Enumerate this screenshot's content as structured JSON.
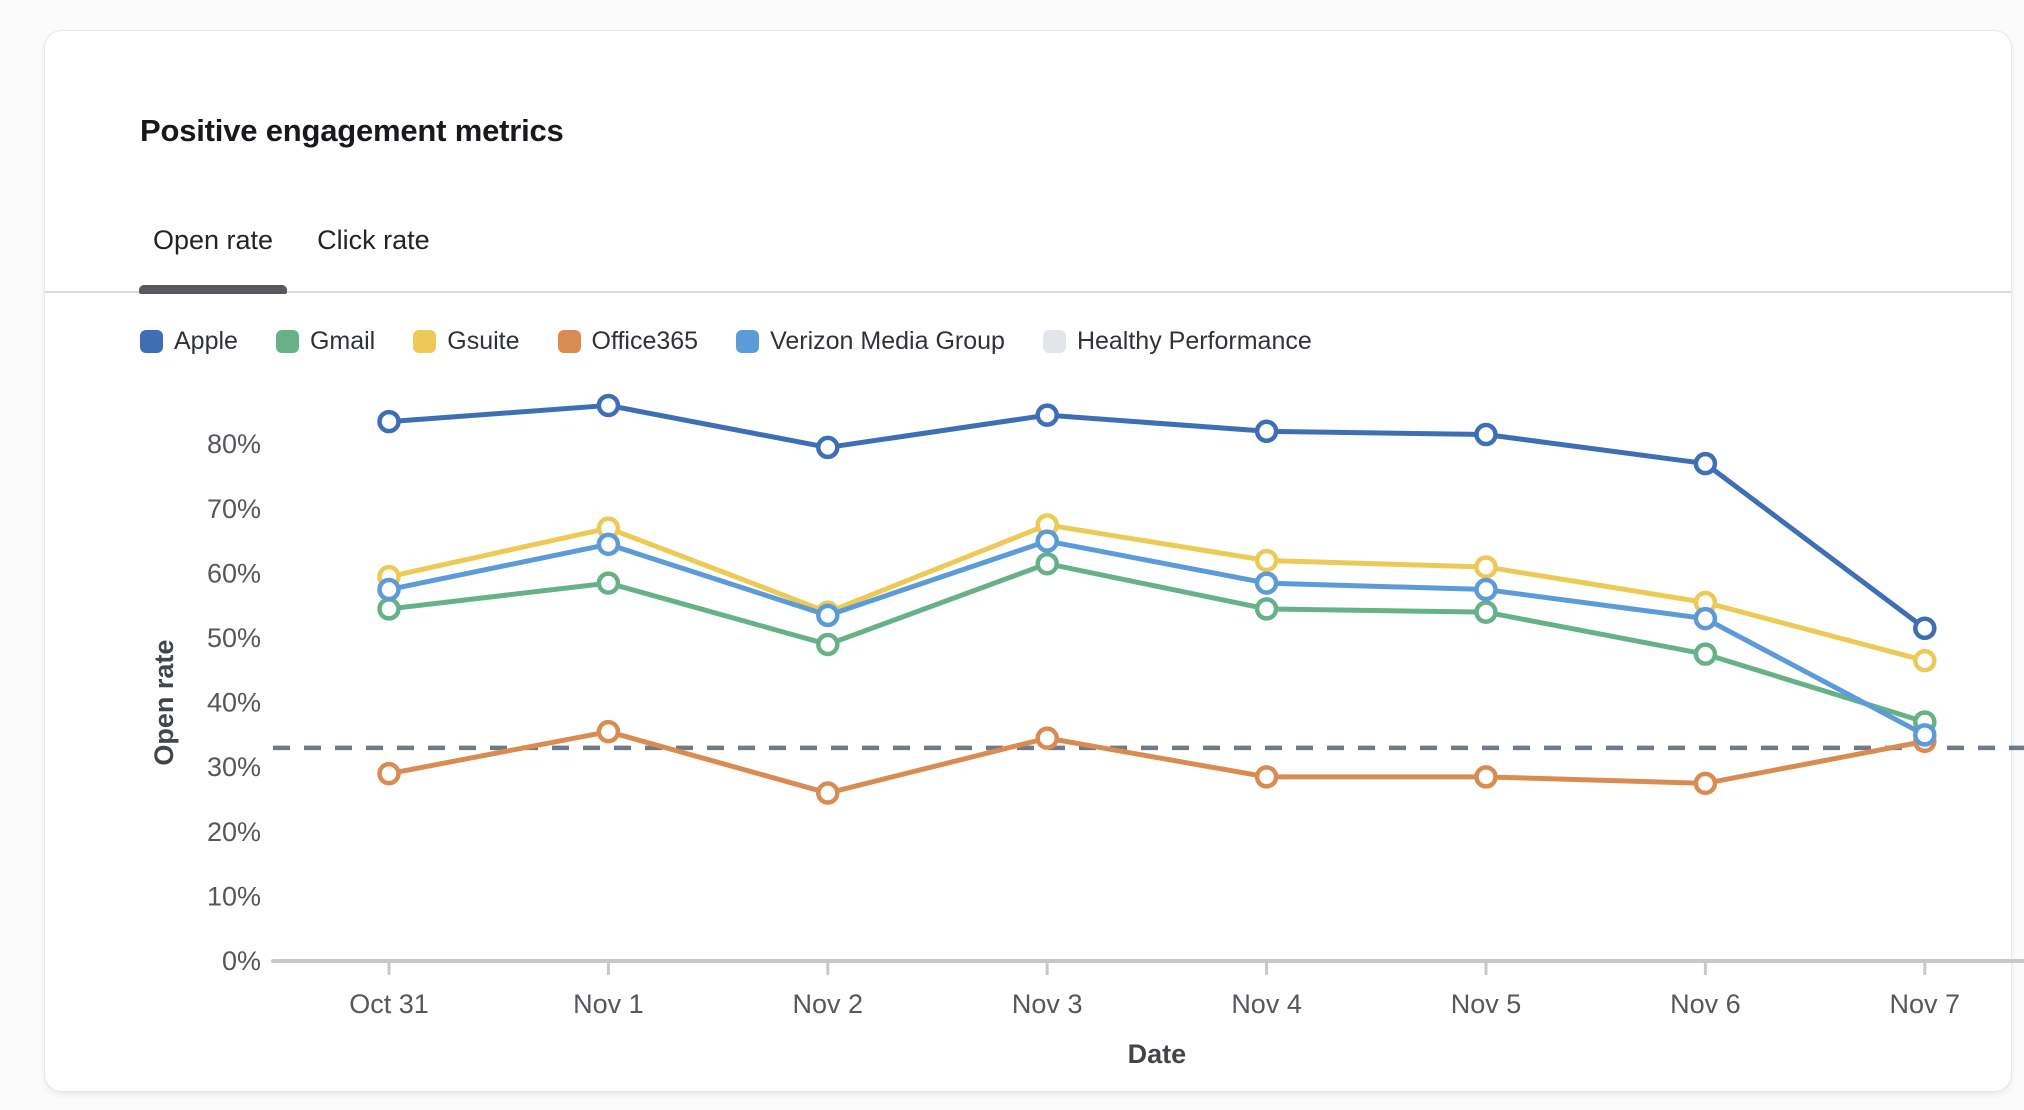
{
  "card": {
    "title": "Positive engagement metrics"
  },
  "tabs": [
    {
      "label": "Open rate",
      "active": true
    },
    {
      "label": "Click rate",
      "active": false
    }
  ],
  "legend": [
    {
      "label": "Apple",
      "color": "#3e6fb4"
    },
    {
      "label": "Gmail",
      "color": "#67b189"
    },
    {
      "label": "Gsuite",
      "color": "#ecca55"
    },
    {
      "label": "Office365",
      "color": "#d98c52"
    },
    {
      "label": "Verizon Media Group",
      "color": "#5b9bd8"
    },
    {
      "label": "Healthy Performance",
      "color": "#e2e6ea"
    }
  ],
  "chart_data": {
    "type": "line",
    "title": "Positive engagement metrics",
    "xlabel": "Date",
    "ylabel": "Open rate",
    "x": [
      "Oct 31",
      "Nov 1",
      "Nov 2",
      "Nov 3",
      "Nov 4",
      "Nov 5",
      "Nov 6",
      "Nov 7"
    ],
    "ylim": [
      0,
      90
    ],
    "yticks": [
      0,
      10,
      20,
      30,
      40,
      50,
      60,
      70,
      80
    ],
    "ytick_suffix": "%",
    "grid": false,
    "legend_position": "top",
    "axis_color": "#c6c9cc",
    "tick_label_color": "#54575b",
    "axis_title_color": "#42464b",
    "series": [
      {
        "name": "Apple",
        "color": "#3e6fb4",
        "markers": true,
        "values": [
          83.5,
          86,
          79.5,
          84.5,
          82,
          81.5,
          77,
          51.5
        ]
      },
      {
        "name": "Gmail",
        "color": "#67b189",
        "markers": true,
        "values": [
          54.5,
          58.5,
          49,
          61.5,
          54.5,
          54,
          47.5,
          37
        ]
      },
      {
        "name": "Gsuite",
        "color": "#ecca55",
        "markers": true,
        "values": [
          59.5,
          67,
          54,
          67.5,
          62,
          61,
          55.5,
          46.5
        ]
      },
      {
        "name": "Office365",
        "color": "#d98c52",
        "markers": true,
        "values": [
          29,
          35.5,
          26,
          34.5,
          28.5,
          28.5,
          27.5,
          34
        ]
      },
      {
        "name": "Verizon Media Group",
        "color": "#5b9bd8",
        "markers": true,
        "values": [
          57.5,
          64.5,
          53.5,
          65,
          58.5,
          57.5,
          53,
          35
        ]
      },
      {
        "name": "Healthy Performance",
        "line_color": "#6e7a87",
        "swatch_color": "#e2e6ea",
        "style": "dashed",
        "markers": false,
        "reference_value": 33
      }
    ]
  }
}
